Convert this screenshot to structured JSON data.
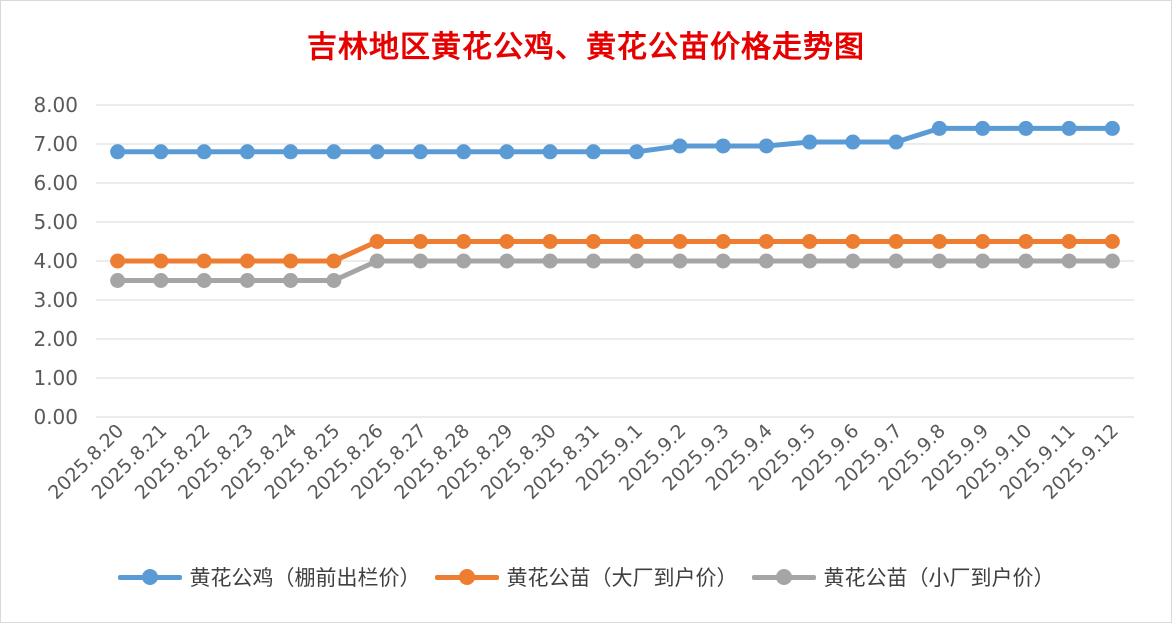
{
  "chart_data": {
    "type": "line",
    "title": "吉林地区黄花公鸡、黄花公苗价格走势图",
    "xlabel": "",
    "ylabel": "",
    "categories": [
      "2025.8.20",
      "2025.8.21",
      "2025.8.22",
      "2025.8.23",
      "2025.8.24",
      "2025.8.25",
      "2025.8.26",
      "2025.8.27",
      "2025.8.28",
      "2025.8.29",
      "2025.8.30",
      "2025.8.31",
      "2025.9.1",
      "2025.9.2",
      "2025.9.3",
      "2025.9.4",
      "2025.9.5",
      "2025.9.6",
      "2025.9.7",
      "2025.9.8",
      "2025.9.9",
      "2025.9.10",
      "2025.9.11",
      "2025.9.12"
    ],
    "ylim": [
      0,
      8
    ],
    "yticks": [
      "0.00",
      "1.00",
      "2.00",
      "3.00",
      "4.00",
      "5.00",
      "6.00",
      "7.00",
      "8.00"
    ],
    "grid": "horizontal",
    "legend_position": "bottom",
    "series": [
      {
        "name": "黄花公鸡（棚前出栏价）",
        "color": "#5b9bd5",
        "values": [
          6.8,
          6.8,
          6.8,
          6.8,
          6.8,
          6.8,
          6.8,
          6.8,
          6.8,
          6.8,
          6.8,
          6.8,
          6.8,
          6.95,
          6.95,
          6.95,
          7.05,
          7.05,
          7.05,
          7.4,
          7.4,
          7.4,
          7.4,
          7.4
        ]
      },
      {
        "name": "黄花公苗（大厂到户价）",
        "color": "#ed7d31",
        "values": [
          4.0,
          4.0,
          4.0,
          4.0,
          4.0,
          4.0,
          4.5,
          4.5,
          4.5,
          4.5,
          4.5,
          4.5,
          4.5,
          4.5,
          4.5,
          4.5,
          4.5,
          4.5,
          4.5,
          4.5,
          4.5,
          4.5,
          4.5,
          4.5
        ]
      },
      {
        "name": "黄花公苗（小厂到户价）",
        "color": "#a5a5a5",
        "values": [
          3.5,
          3.5,
          3.5,
          3.5,
          3.5,
          3.5,
          4.0,
          4.0,
          4.0,
          4.0,
          4.0,
          4.0,
          4.0,
          4.0,
          4.0,
          4.0,
          4.0,
          4.0,
          4.0,
          4.0,
          4.0,
          4.0,
          4.0,
          4.0
        ]
      }
    ]
  }
}
